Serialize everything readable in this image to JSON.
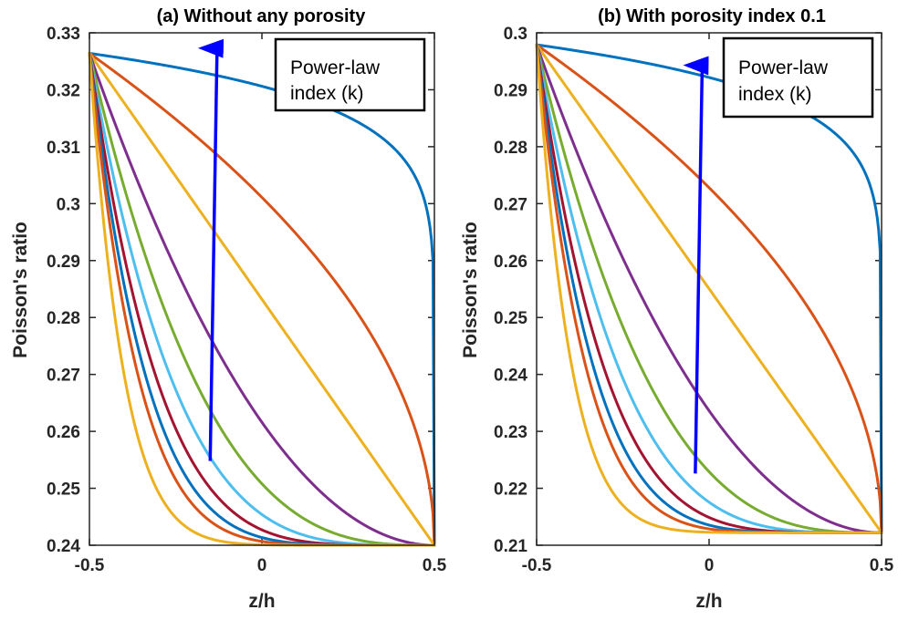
{
  "chart_data": [
    {
      "type": "line",
      "title": "(a) Without any porosity",
      "xlabel": "z/h",
      "ylabel": "Poisson's ratio",
      "xlim": [
        -0.5,
        0.5
      ],
      "ylim": [
        0.24,
        0.33
      ],
      "xticks": [
        "-0.5",
        "0",
        "0.5"
      ],
      "yticks": [
        "0.24",
        "0.25",
        "0.26",
        "0.27",
        "0.28",
        "0.29",
        "0.3",
        "0.31",
        "0.32",
        "0.33"
      ],
      "grid": false,
      "nu_top": 0.3264,
      "nu_bottom": 0.24,
      "k_values": [
        0.1,
        0.5,
        1,
        2,
        3,
        4,
        5,
        6,
        7,
        10
      ],
      "series_colors": [
        "#0072BD",
        "#D95319",
        "#EDB120",
        "#7E2F8E",
        "#77AC30",
        "#4DBEEE",
        "#A2142F",
        "#0072BD",
        "#D95319",
        "#EDB120"
      ],
      "annotation": {
        "text": [
          "Power-law",
          "index (k)"
        ],
        "arrow_color": "#0000FF",
        "arrow_from": [
          -0.15,
          0.2548
        ],
        "arrow_to": [
          -0.13,
          0.3295
        ]
      }
    },
    {
      "type": "line",
      "title": "(b) With porosity index 0.1",
      "xlabel": "z/h",
      "ylabel": "Poisson's ratio",
      "xlim": [
        -0.5,
        0.5
      ],
      "ylim": [
        0.21,
        0.3
      ],
      "xticks": [
        "-0.5",
        "0",
        "0.5"
      ],
      "yticks": [
        "0.21",
        "0.22",
        "0.23",
        "0.24",
        "0.25",
        "0.26",
        "0.27",
        "0.28",
        "0.29",
        "0.3"
      ],
      "grid": false,
      "nu_top": 0.2979,
      "nu_bottom": 0.2122,
      "k_values": [
        0.1,
        0.5,
        1,
        2,
        3,
        4,
        5,
        6,
        7,
        10
      ],
      "series_colors": [
        "#0072BD",
        "#D95319",
        "#EDB120",
        "#7E2F8E",
        "#77AC30",
        "#4DBEEE",
        "#A2142F",
        "#0072BD",
        "#D95319",
        "#EDB120"
      ],
      "annotation": {
        "text": [
          "Power-law",
          "index (k)"
        ],
        "arrow_color": "#0000FF",
        "arrow_from": [
          -0.04,
          0.2226
        ],
        "arrow_to": [
          -0.02,
          0.2965
        ]
      }
    }
  ]
}
